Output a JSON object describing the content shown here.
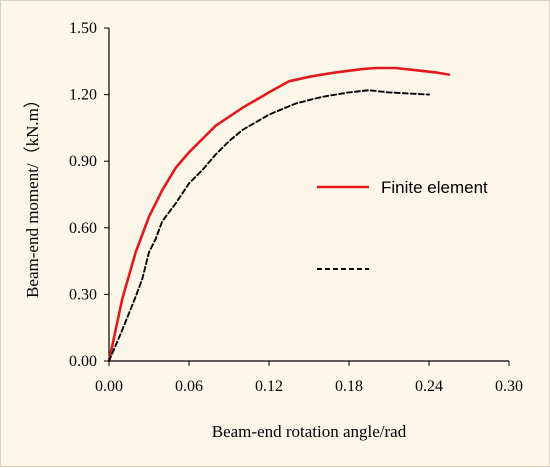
{
  "chart_data": {
    "type": "line",
    "xlabel": "Beam-end rotation angle/rad",
    "ylabel": "Beam-end moment/（kN.m）",
    "xlim": [
      0,
      0.3
    ],
    "ylim": [
      0,
      1.5
    ],
    "x_ticks": [
      "0.00",
      "0.06",
      "0.12",
      "0.18",
      "0.24",
      "0.30"
    ],
    "y_ticks": [
      "0.00",
      "0.30",
      "0.60",
      "0.90",
      "1.20",
      "1.50"
    ],
    "grid": false,
    "legend_placement": "right-middle",
    "series": [
      {
        "name": "Finite element",
        "color": "#e31a1c",
        "style": "solid",
        "points": [
          [
            0,
            0
          ],
          [
            0.01,
            0.28
          ],
          [
            0.02,
            0.49
          ],
          [
            0.03,
            0.65
          ],
          [
            0.04,
            0.77
          ],
          [
            0.05,
            0.87
          ],
          [
            0.06,
            0.94
          ],
          [
            0.07,
            1.0
          ],
          [
            0.08,
            1.06
          ],
          [
            0.1,
            1.14
          ],
          [
            0.12,
            1.21
          ],
          [
            0.135,
            1.26
          ],
          [
            0.15,
            1.28
          ],
          [
            0.17,
            1.3
          ],
          [
            0.19,
            1.315
          ],
          [
            0.2,
            1.32
          ],
          [
            0.215,
            1.32
          ],
          [
            0.23,
            1.31
          ],
          [
            0.245,
            1.3
          ],
          [
            0.255,
            1.29
          ]
        ]
      },
      {
        "name": "",
        "color": "#000000",
        "style": "dashed",
        "points": [
          [
            0,
            0
          ],
          [
            0.01,
            0.14
          ],
          [
            0.02,
            0.29
          ],
          [
            0.025,
            0.37
          ],
          [
            0.03,
            0.49
          ],
          [
            0.035,
            0.55
          ],
          [
            0.04,
            0.63
          ],
          [
            0.05,
            0.71
          ],
          [
            0.06,
            0.8
          ],
          [
            0.07,
            0.86
          ],
          [
            0.08,
            0.93
          ],
          [
            0.09,
            0.99
          ],
          [
            0.1,
            1.04
          ],
          [
            0.12,
            1.11
          ],
          [
            0.14,
            1.16
          ],
          [
            0.16,
            1.19
          ],
          [
            0.18,
            1.21
          ],
          [
            0.195,
            1.22
          ],
          [
            0.21,
            1.21
          ],
          [
            0.225,
            1.205
          ],
          [
            0.24,
            1.2
          ]
        ]
      }
    ]
  }
}
